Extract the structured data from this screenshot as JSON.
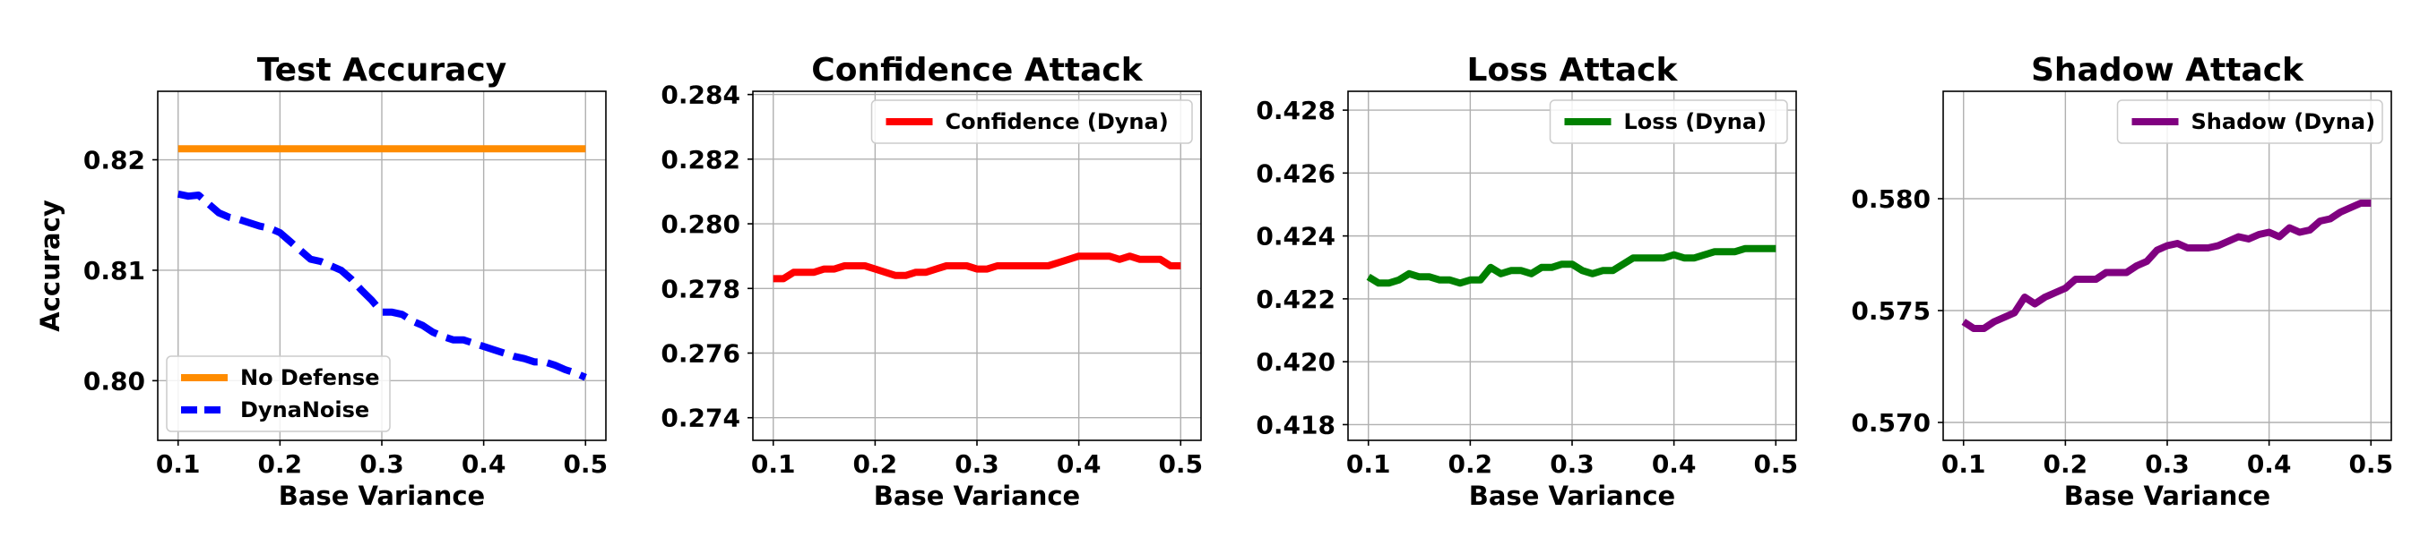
{
  "chart_data": [
    {
      "type": "line",
      "title": "Test Accuracy",
      "xlabel": "Base Variance",
      "ylabel": "Accuracy",
      "xlim": [
        0.08,
        0.52
      ],
      "ylim": [
        0.7946,
        0.8262
      ],
      "xticks": [
        "0.1",
        "0.2",
        "0.3",
        "0.4",
        "0.5"
      ],
      "yticks": [
        "0.80",
        "0.81",
        "0.82"
      ],
      "grid": true,
      "legend_position": "lower-left",
      "x": [
        0.1,
        0.11,
        0.12,
        0.13,
        0.14,
        0.15,
        0.16,
        0.17,
        0.18,
        0.19,
        0.2,
        0.21,
        0.22,
        0.23,
        0.24,
        0.25,
        0.26,
        0.27,
        0.28,
        0.29,
        0.3,
        0.31,
        0.32,
        0.33,
        0.34,
        0.35,
        0.36,
        0.37,
        0.38,
        0.39,
        0.4,
        0.41,
        0.42,
        0.43,
        0.44,
        0.45,
        0.46,
        0.47,
        0.48,
        0.49,
        0.5
      ],
      "series": [
        {
          "name": "No Defense",
          "color": "#ff8c00",
          "style": "solid",
          "values": [
            0.821,
            0.821,
            0.821,
            0.821,
            0.821,
            0.821,
            0.821,
            0.821,
            0.821,
            0.821,
            0.821,
            0.821,
            0.821,
            0.821,
            0.821,
            0.821,
            0.821,
            0.821,
            0.821,
            0.821,
            0.821,
            0.821,
            0.821,
            0.821,
            0.821,
            0.821,
            0.821,
            0.821,
            0.821,
            0.821,
            0.821,
            0.821,
            0.821,
            0.821,
            0.821,
            0.821,
            0.821,
            0.821,
            0.821,
            0.821,
            0.821
          ]
        },
        {
          "name": "DynaNoise",
          "color": "#0000ff",
          "style": "dashed",
          "values": [
            0.8169,
            0.8167,
            0.8168,
            0.816,
            0.8152,
            0.8148,
            0.8146,
            0.8143,
            0.814,
            0.8138,
            0.8134,
            0.8126,
            0.8118,
            0.811,
            0.8108,
            0.8104,
            0.81,
            0.8092,
            0.8082,
            0.8073,
            0.8062,
            0.8062,
            0.806,
            0.8054,
            0.805,
            0.8044,
            0.804,
            0.8037,
            0.8037,
            0.8034,
            0.8031,
            0.8028,
            0.8025,
            0.8022,
            0.802,
            0.8017,
            0.8017,
            0.8014,
            0.801,
            0.8007,
            0.8003
          ]
        }
      ]
    },
    {
      "type": "line",
      "title": "Confidence Attack",
      "xlabel": "Base Variance",
      "ylabel": "",
      "xlim": [
        0.08,
        0.52
      ],
      "ylim": [
        0.2733,
        0.2841
      ],
      "xticks": [
        "0.1",
        "0.2",
        "0.3",
        "0.4",
        "0.5"
      ],
      "yticks": [
        "0.274",
        "0.276",
        "0.278",
        "0.280",
        "0.282",
        "0.284"
      ],
      "grid": true,
      "legend_position": "upper-right",
      "x": [
        0.1,
        0.11,
        0.12,
        0.13,
        0.14,
        0.15,
        0.16,
        0.17,
        0.18,
        0.19,
        0.2,
        0.21,
        0.22,
        0.23,
        0.24,
        0.25,
        0.26,
        0.27,
        0.28,
        0.29,
        0.3,
        0.31,
        0.32,
        0.33,
        0.34,
        0.35,
        0.36,
        0.37,
        0.38,
        0.39,
        0.4,
        0.41,
        0.42,
        0.43,
        0.44,
        0.45,
        0.46,
        0.47,
        0.48,
        0.49,
        0.5
      ],
      "series": [
        {
          "name": "Confidence (Dyna)",
          "color": "#ff0000",
          "style": "solid",
          "values": [
            0.2783,
            0.2783,
            0.2785,
            0.2785,
            0.2785,
            0.2786,
            0.2786,
            0.2787,
            0.2787,
            0.2787,
            0.2786,
            0.2785,
            0.2784,
            0.2784,
            0.2785,
            0.2785,
            0.2786,
            0.2787,
            0.2787,
            0.2787,
            0.2786,
            0.2786,
            0.2787,
            0.2787,
            0.2787,
            0.2787,
            0.2787,
            0.2787,
            0.2788,
            0.2789,
            0.279,
            0.279,
            0.279,
            0.279,
            0.2789,
            0.279,
            0.2789,
            0.2789,
            0.2789,
            0.2787,
            0.2787
          ]
        }
      ]
    },
    {
      "type": "line",
      "title": "Loss Attack",
      "xlabel": "Base Variance",
      "ylabel": "",
      "xlim": [
        0.08,
        0.52
      ],
      "ylim": [
        0.4175,
        0.4286
      ],
      "xticks": [
        "0.1",
        "0.2",
        "0.3",
        "0.4",
        "0.5"
      ],
      "yticks": [
        "0.418",
        "0.420",
        "0.422",
        "0.424",
        "0.426",
        "0.428"
      ],
      "grid": true,
      "legend_position": "upper-right",
      "x": [
        0.1,
        0.11,
        0.12,
        0.13,
        0.14,
        0.15,
        0.16,
        0.17,
        0.18,
        0.19,
        0.2,
        0.21,
        0.22,
        0.23,
        0.24,
        0.25,
        0.26,
        0.27,
        0.28,
        0.29,
        0.3,
        0.31,
        0.32,
        0.33,
        0.34,
        0.35,
        0.36,
        0.37,
        0.38,
        0.39,
        0.4,
        0.41,
        0.42,
        0.43,
        0.44,
        0.45,
        0.46,
        0.47,
        0.48,
        0.49,
        0.5
      ],
      "series": [
        {
          "name": "Loss (Dyna)",
          "color": "#008000",
          "style": "solid",
          "values": [
            0.4227,
            0.4225,
            0.4225,
            0.4226,
            0.4228,
            0.4227,
            0.4227,
            0.4226,
            0.4226,
            0.4225,
            0.4226,
            0.4226,
            0.423,
            0.4228,
            0.4229,
            0.4229,
            0.4228,
            0.423,
            0.423,
            0.4231,
            0.4231,
            0.4229,
            0.4228,
            0.4229,
            0.4229,
            0.4231,
            0.4233,
            0.4233,
            0.4233,
            0.4233,
            0.4234,
            0.4233,
            0.4233,
            0.4234,
            0.4235,
            0.4235,
            0.4235,
            0.4236,
            0.4236,
            0.4236,
            0.4236
          ]
        }
      ]
    },
    {
      "type": "line",
      "title": "Shadow Attack",
      "xlabel": "Base Variance",
      "ylabel": "",
      "xlim": [
        0.08,
        0.52
      ],
      "ylim": [
        0.5692,
        0.5848
      ],
      "xticks": [
        "0.1",
        "0.2",
        "0.3",
        "0.4",
        "0.5"
      ],
      "yticks": [
        "0.570",
        "0.575",
        "0.580"
      ],
      "grid": true,
      "legend_position": "upper-right",
      "x": [
        0.1,
        0.11,
        0.12,
        0.13,
        0.14,
        0.15,
        0.16,
        0.17,
        0.18,
        0.19,
        0.2,
        0.21,
        0.22,
        0.23,
        0.24,
        0.25,
        0.26,
        0.27,
        0.28,
        0.29,
        0.3,
        0.31,
        0.32,
        0.33,
        0.34,
        0.35,
        0.36,
        0.37,
        0.38,
        0.39,
        0.4,
        0.41,
        0.42,
        0.43,
        0.44,
        0.45,
        0.46,
        0.47,
        0.48,
        0.49,
        0.5
      ],
      "series": [
        {
          "name": "Shadow (Dyna)",
          "color": "#800080",
          "style": "solid",
          "values": [
            0.5745,
            0.5742,
            0.5742,
            0.5745,
            0.5747,
            0.5749,
            0.5756,
            0.5753,
            0.5756,
            0.5758,
            0.576,
            0.5764,
            0.5764,
            0.5764,
            0.5767,
            0.5767,
            0.5767,
            0.577,
            0.5772,
            0.5777,
            0.5779,
            0.578,
            0.5778,
            0.5778,
            0.5778,
            0.5779,
            0.5781,
            0.5783,
            0.5782,
            0.5784,
            0.5785,
            0.5783,
            0.5787,
            0.5785,
            0.5786,
            0.579,
            0.5791,
            0.5794,
            0.5796,
            0.5798,
            0.5798
          ]
        }
      ]
    }
  ]
}
